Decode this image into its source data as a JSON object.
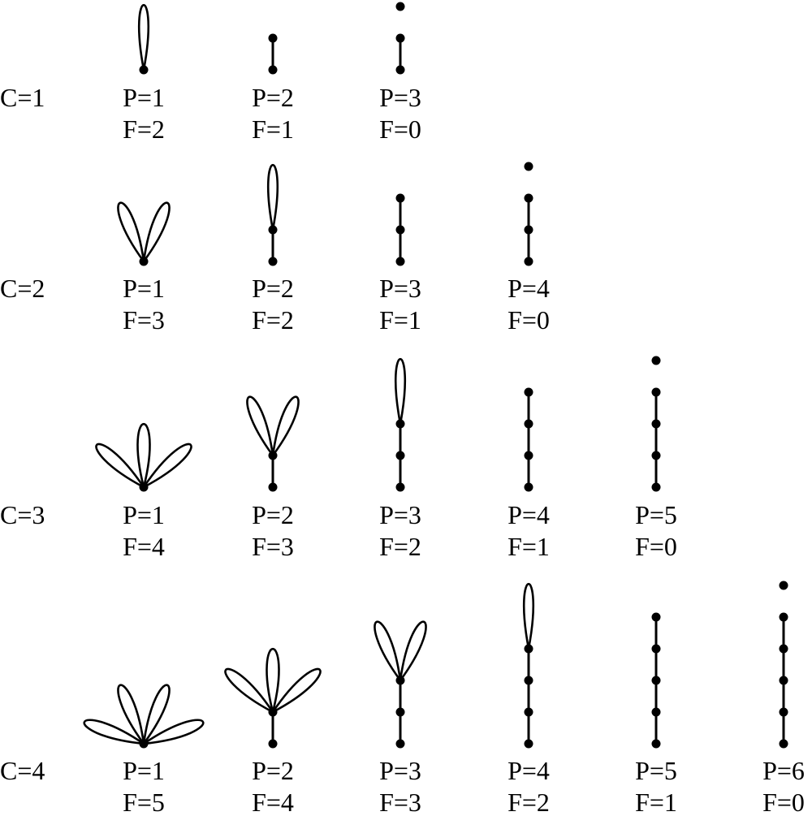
{
  "ink_color": "#000000",
  "rows": [
    {
      "label": "C=1",
      "items": [
        {
          "p": "P=1",
          "f": "F=2",
          "petals": 1,
          "path_vertices": 1,
          "isolated_vertex": false
        },
        {
          "p": "P=2",
          "f": "F=1",
          "petals": 0,
          "path_vertices": 2,
          "isolated_vertex": false
        },
        {
          "p": "P=3",
          "f": "F=0",
          "petals": 0,
          "path_vertices": 2,
          "isolated_vertex": true
        }
      ]
    },
    {
      "label": "C=2",
      "items": [
        {
          "p": "P=1",
          "f": "F=3",
          "petals": 2,
          "path_vertices": 1,
          "isolated_vertex": false
        },
        {
          "p": "P=2",
          "f": "F=2",
          "petals": 1,
          "path_vertices": 2,
          "isolated_vertex": false
        },
        {
          "p": "P=3",
          "f": "F=1",
          "petals": 0,
          "path_vertices": 3,
          "isolated_vertex": false
        },
        {
          "p": "P=4",
          "f": "F=0",
          "petals": 0,
          "path_vertices": 3,
          "isolated_vertex": true
        }
      ]
    },
    {
      "label": "C=3",
      "items": [
        {
          "p": "P=1",
          "f": "F=4",
          "petals": 3,
          "path_vertices": 1,
          "isolated_vertex": false
        },
        {
          "p": "P=2",
          "f": "F=3",
          "petals": 2,
          "path_vertices": 2,
          "isolated_vertex": false
        },
        {
          "p": "P=3",
          "f": "F=2",
          "petals": 1,
          "path_vertices": 3,
          "isolated_vertex": false
        },
        {
          "p": "P=4",
          "f": "F=1",
          "petals": 0,
          "path_vertices": 4,
          "isolated_vertex": false
        },
        {
          "p": "P=5",
          "f": "F=0",
          "petals": 0,
          "path_vertices": 4,
          "isolated_vertex": true
        }
      ]
    },
    {
      "label": "C=4",
      "items": [
        {
          "p": "P=1",
          "f": "F=5",
          "petals": 4,
          "path_vertices": 1,
          "isolated_vertex": false
        },
        {
          "p": "P=2",
          "f": "F=4",
          "petals": 3,
          "path_vertices": 2,
          "isolated_vertex": false
        },
        {
          "p": "P=3",
          "f": "F=3",
          "petals": 2,
          "path_vertices": 3,
          "isolated_vertex": false
        },
        {
          "p": "P=4",
          "f": "F=2",
          "petals": 1,
          "path_vertices": 4,
          "isolated_vertex": false
        },
        {
          "p": "P=5",
          "f": "F=1",
          "petals": 0,
          "path_vertices": 5,
          "isolated_vertex": false
        },
        {
          "p": "P=6",
          "f": "F=0",
          "petals": 0,
          "path_vertices": 5,
          "isolated_vertex": true
        }
      ]
    }
  ]
}
